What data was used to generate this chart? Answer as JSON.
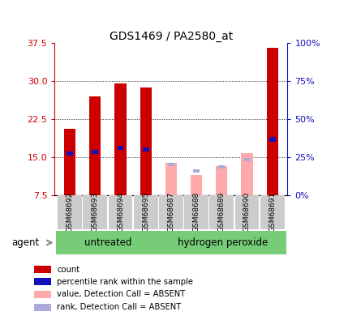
{
  "title": "GDS1469 / PA2580_at",
  "samples": [
    "GSM68692",
    "GSM68693",
    "GSM68694",
    "GSM68695",
    "GSM68687",
    "GSM68688",
    "GSM68689",
    "GSM68690",
    "GSM68691"
  ],
  "red_values": [
    20.5,
    27.0,
    29.5,
    28.7,
    null,
    null,
    null,
    null,
    36.5
  ],
  "blue_values": [
    15.7,
    16.0,
    16.8,
    16.5,
    null,
    null,
    null,
    null,
    18.5
  ],
  "pink_values": [
    null,
    null,
    null,
    null,
    13.8,
    11.5,
    13.2,
    15.8,
    null
  ],
  "lightblue_values": [
    null,
    null,
    null,
    null,
    13.5,
    12.2,
    13.0,
    14.5,
    null
  ],
  "ylim_left": [
    7.5,
    37.5
  ],
  "ylim_right": [
    0,
    100
  ],
  "yticks_left": [
    7.5,
    15.0,
    22.5,
    30.0,
    37.5
  ],
  "yticks_right": [
    0,
    25,
    50,
    75,
    100
  ],
  "bar_width": 0.45,
  "red_color": "#cc0000",
  "blue_color": "#1111bb",
  "pink_color": "#ffaaaa",
  "lightblue_color": "#aaaadd",
  "green_group_color": "#77cc77",
  "gray_sample_color": "#cccccc",
  "legend_labels": [
    "count",
    "percentile rank within the sample",
    "value, Detection Call = ABSENT",
    "rank, Detection Call = ABSENT"
  ],
  "legend_colors": [
    "#cc0000",
    "#1111bb",
    "#ffaaaa",
    "#aaaadd"
  ],
  "untreated_indices": [
    0,
    1,
    2,
    3
  ],
  "peroxide_indices": [
    4,
    5,
    6,
    7,
    8
  ]
}
